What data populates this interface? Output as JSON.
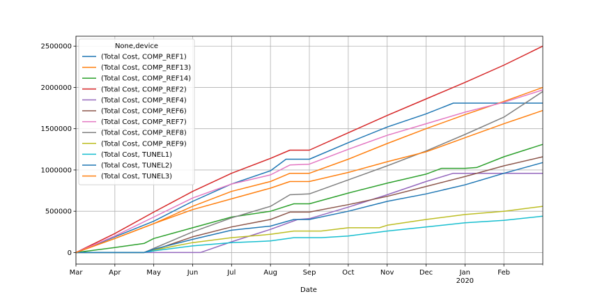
{
  "chart_data": {
    "type": "line",
    "xlabel": "Date",
    "ylabel": "",
    "x_ticks": [
      "Mar",
      "Apr",
      "May",
      "Jun",
      "Jul",
      "Aug",
      "Sep",
      "Oct",
      "Nov",
      "Dec",
      "Jan",
      "Feb"
    ],
    "x_sublabel": "2020",
    "x_sublabel_under": "Jan",
    "ylim": [
      -140000,
      2620000
    ],
    "y_ticks": [
      0,
      500000,
      1000000,
      1500000,
      2000000,
      2500000
    ],
    "grid": true,
    "legend": {
      "title": "None,device",
      "placement": "top-left"
    },
    "x_months": [
      0,
      1,
      2,
      3,
      4,
      5,
      6,
      7,
      8,
      9,
      10,
      11,
      12
    ],
    "series": [
      {
        "name": "(Total Cost, COMP_REF1)",
        "color": "#1f77b4",
        "points": [
          [
            0,
            0
          ],
          [
            1,
            190000
          ],
          [
            2,
            380000
          ],
          [
            3,
            620000
          ],
          [
            4,
            830000
          ],
          [
            5,
            990000
          ],
          [
            5.4,
            1130000
          ],
          [
            6,
            1130000
          ],
          [
            7,
            1330000
          ],
          [
            8,
            1520000
          ],
          [
            9,
            1680000
          ],
          [
            9.7,
            1810000
          ],
          [
            10,
            1810000
          ],
          [
            11,
            1810000
          ],
          [
            12,
            1810000
          ]
        ]
      },
      {
        "name": "(Total Cost, COMP_REF13)",
        "color": "#ff7f0e",
        "points": [
          [
            0,
            0
          ],
          [
            1,
            170000
          ],
          [
            2,
            350000
          ],
          [
            3,
            560000
          ],
          [
            4,
            740000
          ],
          [
            5,
            860000
          ],
          [
            5.5,
            960000
          ],
          [
            6,
            960000
          ],
          [
            7,
            1130000
          ],
          [
            8,
            1320000
          ],
          [
            9,
            1500000
          ],
          [
            10,
            1670000
          ],
          [
            11,
            1830000
          ],
          [
            12,
            2000000
          ]
        ]
      },
      {
        "name": "(Total Cost, COMP_REF14)",
        "color": "#2ca02c",
        "points": [
          [
            0,
            0
          ],
          [
            1,
            60000
          ],
          [
            1.75,
            110000
          ],
          [
            2,
            170000
          ],
          [
            3,
            300000
          ],
          [
            4,
            430000
          ],
          [
            5,
            500000
          ],
          [
            5.6,
            590000
          ],
          [
            6,
            590000
          ],
          [
            7,
            720000
          ],
          [
            8,
            840000
          ],
          [
            9,
            950000
          ],
          [
            9.4,
            1020000
          ],
          [
            10,
            1020000
          ],
          [
            10.3,
            1030000
          ],
          [
            11,
            1160000
          ],
          [
            12,
            1310000
          ]
        ]
      },
      {
        "name": "(Total Cost, COMP_REF2)",
        "color": "#d62728",
        "points": [
          [
            0,
            0
          ],
          [
            1,
            230000
          ],
          [
            2,
            490000
          ],
          [
            3,
            740000
          ],
          [
            4,
            960000
          ],
          [
            5,
            1140000
          ],
          [
            5.5,
            1240000
          ],
          [
            6,
            1240000
          ],
          [
            7,
            1450000
          ],
          [
            8,
            1660000
          ],
          [
            9,
            1860000
          ],
          [
            10,
            2060000
          ],
          [
            11,
            2270000
          ],
          [
            12,
            2500000
          ]
        ]
      },
      {
        "name": "(Total Cost, COMP_REF4)",
        "color": "#9467bd",
        "points": [
          [
            0,
            0
          ],
          [
            3.2,
            0
          ],
          [
            4,
            130000
          ],
          [
            5,
            280000
          ],
          [
            5.7,
            400000
          ],
          [
            6,
            410000
          ],
          [
            7,
            550000
          ],
          [
            8,
            700000
          ],
          [
            9,
            860000
          ],
          [
            9.7,
            960000
          ],
          [
            10,
            960000
          ],
          [
            11,
            960000
          ],
          [
            12,
            960000
          ]
        ]
      },
      {
        "name": "(Total Cost, COMP_REF6)",
        "color": "#8c564b",
        "points": [
          [
            0,
            0
          ],
          [
            1.75,
            0
          ],
          [
            2,
            30000
          ],
          [
            3,
            190000
          ],
          [
            4,
            310000
          ],
          [
            5,
            400000
          ],
          [
            5.5,
            490000
          ],
          [
            6,
            490000
          ],
          [
            7,
            580000
          ],
          [
            8,
            680000
          ],
          [
            9,
            800000
          ],
          [
            10,
            920000
          ],
          [
            11,
            1050000
          ],
          [
            12,
            1160000
          ]
        ]
      },
      {
        "name": "(Total Cost, COMP_REF7)",
        "color": "#e377c2",
        "points": [
          [
            0,
            0
          ],
          [
            1,
            200000
          ],
          [
            2,
            430000
          ],
          [
            3,
            660000
          ],
          [
            4,
            830000
          ],
          [
            5,
            940000
          ],
          [
            5.5,
            1060000
          ],
          [
            6,
            1070000
          ],
          [
            7,
            1250000
          ],
          [
            8,
            1420000
          ],
          [
            9,
            1560000
          ],
          [
            10,
            1700000
          ],
          [
            11,
            1820000
          ],
          [
            12,
            1970000
          ]
        ]
      },
      {
        "name": "(Total Cost, COMP_REF8)",
        "color": "#7f7f7f",
        "points": [
          [
            0,
            0
          ],
          [
            1.75,
            0
          ],
          [
            2,
            50000
          ],
          [
            3,
            250000
          ],
          [
            4,
            420000
          ],
          [
            5,
            560000
          ],
          [
            5.5,
            700000
          ],
          [
            6,
            710000
          ],
          [
            7,
            880000
          ],
          [
            8,
            1050000
          ],
          [
            9,
            1230000
          ],
          [
            10,
            1430000
          ],
          [
            11,
            1640000
          ],
          [
            12,
            1950000
          ]
        ]
      },
      {
        "name": "(Total Cost, COMP_REF9)",
        "color": "#bcbd22",
        "points": [
          [
            0,
            0
          ],
          [
            1.75,
            0
          ],
          [
            2,
            30000
          ],
          [
            3,
            120000
          ],
          [
            4,
            180000
          ],
          [
            5,
            220000
          ],
          [
            5.6,
            260000
          ],
          [
            6.3,
            260000
          ],
          [
            7,
            300000
          ],
          [
            7.8,
            300000
          ],
          [
            8,
            330000
          ],
          [
            9,
            400000
          ],
          [
            10,
            460000
          ],
          [
            11,
            500000
          ],
          [
            12,
            560000
          ]
        ]
      },
      {
        "name": "(Total Cost, TUNEL1)",
        "color": "#17becf",
        "points": [
          [
            0,
            0
          ],
          [
            1.75,
            0
          ],
          [
            2,
            20000
          ],
          [
            3,
            80000
          ],
          [
            4,
            120000
          ],
          [
            5,
            140000
          ],
          [
            5.6,
            180000
          ],
          [
            6.3,
            180000
          ],
          [
            7,
            200000
          ],
          [
            8,
            260000
          ],
          [
            9,
            310000
          ],
          [
            10,
            360000
          ],
          [
            11,
            390000
          ],
          [
            12,
            440000
          ]
        ]
      },
      {
        "name": "(Total Cost, TUNEL2)",
        "color": "#1f77b4",
        "points": [
          [
            0,
            0
          ],
          [
            1.75,
            0
          ],
          [
            2,
            40000
          ],
          [
            3,
            160000
          ],
          [
            4,
            270000
          ],
          [
            5,
            320000
          ],
          [
            5.6,
            400000
          ],
          [
            6,
            400000
          ],
          [
            7,
            500000
          ],
          [
            8,
            620000
          ],
          [
            9,
            710000
          ],
          [
            10,
            820000
          ],
          [
            11,
            960000
          ],
          [
            12,
            1090000
          ]
        ]
      },
      {
        "name": "(Total Cost, TUNEL3)",
        "color": "#ff7f0e",
        "points": [
          [
            0,
            0
          ],
          [
            1,
            170000
          ],
          [
            2,
            350000
          ],
          [
            3,
            520000
          ],
          [
            4,
            650000
          ],
          [
            5,
            780000
          ],
          [
            5.5,
            860000
          ],
          [
            6,
            860000
          ],
          [
            7,
            970000
          ],
          [
            8,
            1100000
          ],
          [
            9,
            1220000
          ],
          [
            10,
            1390000
          ],
          [
            11,
            1560000
          ],
          [
            12,
            1720000
          ]
        ]
      }
    ]
  }
}
